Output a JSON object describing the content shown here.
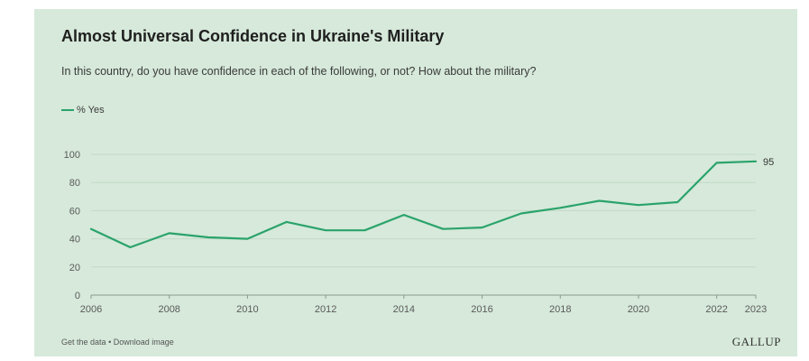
{
  "title": "Almost Universal Confidence in Ukraine's Military",
  "subtitle": "In this country, do you have confidence in each of the following, or not? How about the military?",
  "legend": {
    "label": "% Yes",
    "color": "#2aa36b"
  },
  "colors": {
    "background": "#d6e9da",
    "line": "#2aa36b",
    "grid": "#c4d9c8",
    "axis": "#8a9a8e",
    "tick_text": "#5a5a5a"
  },
  "chart_data": {
    "type": "line",
    "title": "Almost Universal Confidence in Ukraine's Military",
    "xlabel": "",
    "ylabel": "",
    "ylim": [
      0,
      100
    ],
    "xlim": [
      2006,
      2023
    ],
    "y_ticks": [
      0,
      20,
      40,
      60,
      80,
      100
    ],
    "x_ticks": [
      2006,
      2008,
      2010,
      2012,
      2014,
      2016,
      2018,
      2020,
      2022,
      2023
    ],
    "grid": true,
    "legend_position": "top-left",
    "series": [
      {
        "name": "% Yes",
        "x": [
          2006,
          2007,
          2008,
          2009,
          2010,
          2011,
          2012,
          2013,
          2014,
          2015,
          2016,
          2017,
          2018,
          2019,
          2020,
          2021,
          2022,
          2023
        ],
        "values": [
          47,
          34,
          44,
          41,
          40,
          52,
          46,
          46,
          57,
          47,
          48,
          58,
          62,
          67,
          64,
          66,
          94,
          95
        ]
      }
    ],
    "end_label": "95"
  },
  "footer": {
    "get_data": "Get the data",
    "separator": "•",
    "download": "Download image",
    "brand": "GALLUP"
  }
}
